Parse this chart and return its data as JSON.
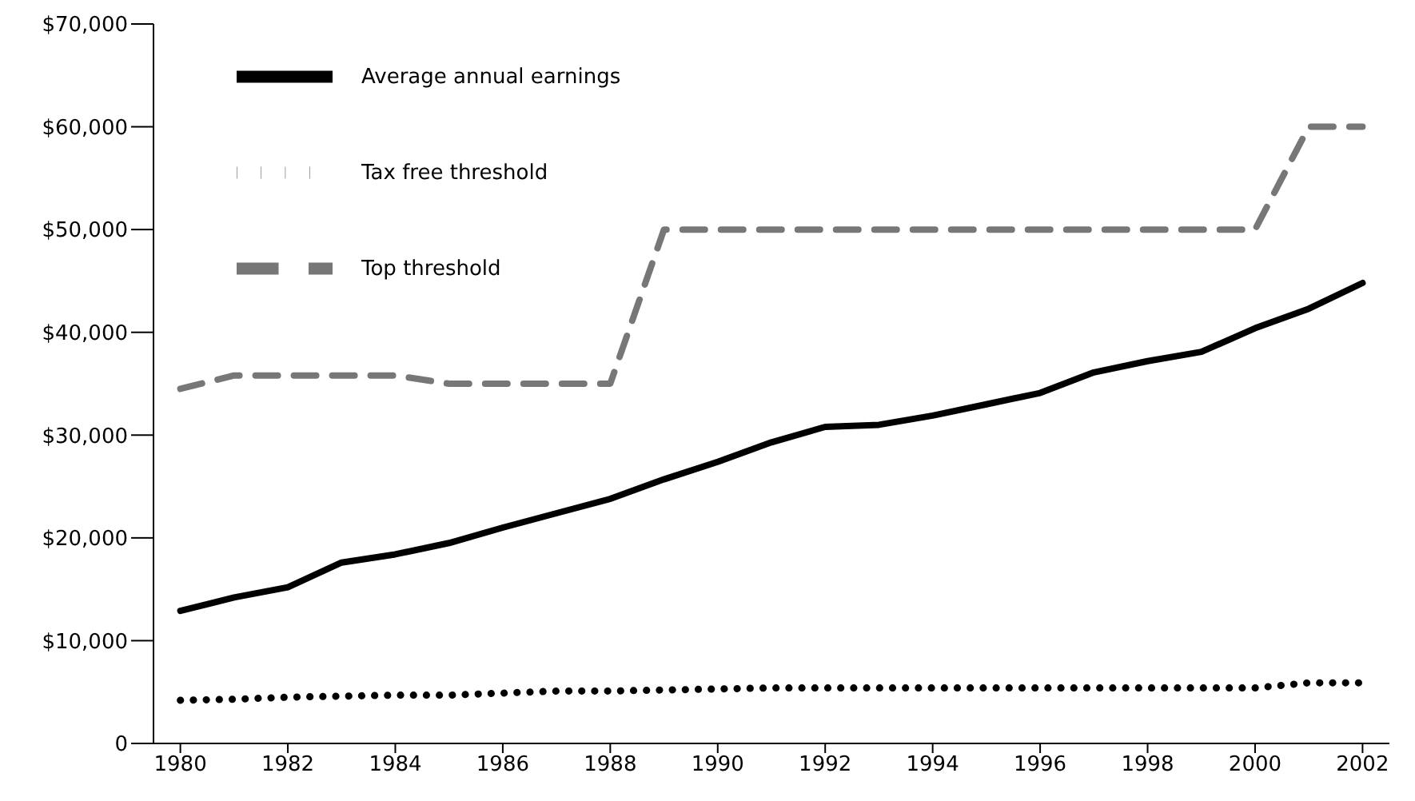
{
  "chart_data": {
    "type": "line",
    "x": [
      1980,
      1981,
      1982,
      1983,
      1984,
      1985,
      1986,
      1987,
      1988,
      1989,
      1990,
      1991,
      1992,
      1993,
      1994,
      1995,
      1996,
      1997,
      1998,
      1999,
      2000,
      2001,
      2002
    ],
    "series": [
      {
        "name": "Top threshold",
        "color": "#777777",
        "line_style": "dashed",
        "values": [
          34500,
          35800,
          35800,
          35800,
          35800,
          35000,
          35000,
          35000,
          35000,
          50000,
          50000,
          50000,
          50000,
          50000,
          50000,
          50000,
          50000,
          50000,
          50000,
          50000,
          50000,
          60000,
          60000
        ]
      },
      {
        "name": "Average annual earnings",
        "color": "#000000",
        "line_style": "solid",
        "values": [
          12900,
          14200,
          15200,
          17600,
          18400,
          19500,
          21000,
          22400,
          23800,
          25700,
          27400,
          29300,
          30800,
          31000,
          31900,
          33000,
          34100,
          36100,
          37200,
          38100,
          40400,
          42300,
          44800
        ]
      },
      {
        "name": "Tax free threshold",
        "color": "#000000",
        "line_style": "dotted",
        "values": [
          4200,
          4300,
          4500,
          4600,
          4700,
          4700,
          4900,
          5100,
          5100,
          5200,
          5300,
          5400,
          5400,
          5400,
          5400,
          5400,
          5400,
          5400,
          5400,
          5400,
          5400,
          5900,
          5900
        ]
      }
    ],
    "xlim": [
      1979.5,
      2002.5
    ],
    "xticks": [
      1980,
      1982,
      1984,
      1986,
      1988,
      1990,
      1992,
      1994,
      1996,
      1998,
      2000,
      2002
    ],
    "ylim": [
      0,
      70000
    ],
    "yticks": [
      0,
      {
        "value": 10000,
        "label": "$10,000"
      },
      {
        "value": 20000,
        "label": "$20,000"
      },
      {
        "value": 30000,
        "label": "$30,000"
      },
      {
        "value": 40000,
        "label": "$40,000"
      },
      {
        "value": 50000,
        "label": "$50,000"
      },
      {
        "value": 60000,
        "label": "$60,000"
      },
      {
        "value": 70000,
        "label": "$70,000"
      }
    ],
    "grid": false,
    "legend": "top left",
    "marker": "none"
  }
}
